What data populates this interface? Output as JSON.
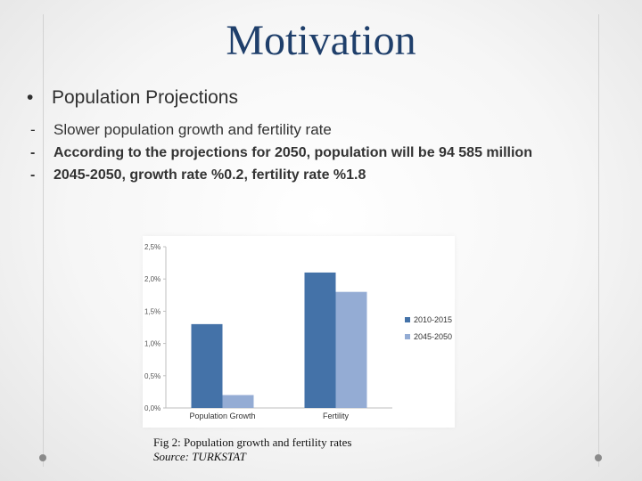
{
  "slide": {
    "title": "Motivation",
    "bullet_symbol": "•",
    "bullet": "Population Projections",
    "dash": "-",
    "items": [
      "Slower population growth  and fertility rate",
      "According to the projections for 2050, population will be 94 585 million",
      "2045-2050, growth rate %0.2, fertility rate %1.8"
    ],
    "caption": "Fig 2: Population growth and fertility rates",
    "source": "Source: TURKSTAT"
  },
  "chart_data": {
    "type": "bar",
    "categories": [
      "Population Growth",
      "Fertility"
    ],
    "series": [
      {
        "name": "2010-2015",
        "values": [
          1.3,
          2.1
        ],
        "color": "#4472a8"
      },
      {
        "name": "2045-2050",
        "values": [
          0.2,
          1.8
        ],
        "color": "#94acd4"
      }
    ],
    "ylim": [
      0,
      2.5
    ],
    "yticks": [
      "0,0%",
      "0,5%",
      "1,0%",
      "1,5%",
      "2,0%",
      "2,5%"
    ],
    "grid": false,
    "legend": "right"
  }
}
